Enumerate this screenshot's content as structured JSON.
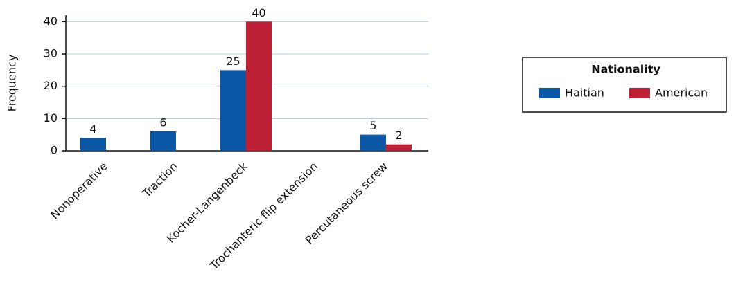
{
  "chart_data": {
    "type": "bar",
    "y_label": "Frequency",
    "categories": [
      "Nonoperative",
      "Traction",
      "Kocher-Langenbeck",
      "Trochanteric flip extension",
      "Percutaneous screw"
    ],
    "series": [
      {
        "name": "Haitian",
        "color": "#0a56a5",
        "values": [
          4,
          6,
          25,
          null,
          5
        ]
      },
      {
        "name": "American",
        "color": "#bd2035",
        "values": [
          null,
          null,
          40,
          null,
          2
        ]
      }
    ],
    "legend_title": "Nationality",
    "legend_position": "right",
    "ylim": [
      0,
      42
    ],
    "yticks": [
      0,
      10,
      20,
      30,
      40
    ],
    "grid": true
  }
}
